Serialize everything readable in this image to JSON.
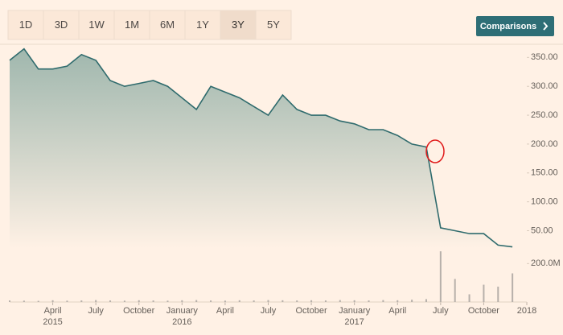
{
  "toolbar": {
    "ranges": [
      "1D",
      "3D",
      "1W",
      "1M",
      "6M",
      "1Y",
      "3Y",
      "5Y"
    ],
    "selected": "3Y",
    "button": "Comparisons"
  },
  "chart_data": [
    {
      "type": "area",
      "color": "#2f6b6d",
      "x": [
        "2015-01",
        "2015-02",
        "2015-03",
        "2015-04",
        "2015-05",
        "2015-06",
        "2015-07",
        "2015-08",
        "2015-09",
        "2015-10",
        "2015-11",
        "2015-12",
        "2016-01",
        "2016-02",
        "2016-03",
        "2016-04",
        "2016-05",
        "2016-06",
        "2016-07",
        "2016-08",
        "2016-09",
        "2016-10",
        "2016-11",
        "2016-12",
        "2017-01",
        "2017-02",
        "2017-03",
        "2017-04",
        "2017-05",
        "2017-06",
        "2017-07",
        "2017-08",
        "2017-09",
        "2017-10",
        "2017-11",
        "2017-12"
      ],
      "values": [
        345,
        365,
        330,
        330,
        335,
        355,
        345,
        310,
        300,
        305,
        310,
        300,
        280,
        260,
        300,
        290,
        280,
        265,
        250,
        285,
        260,
        250,
        250,
        240,
        235,
        225,
        225,
        215,
        200,
        195,
        55,
        50,
        45,
        45,
        25,
        22
      ],
      "xlim": [
        "2015-01",
        "2018-01"
      ],
      "ylim": [
        20,
        370
      ],
      "yticks": [
        {
          "value": 50,
          "label": "50.00"
        },
        {
          "value": 100,
          "label": "100.00"
        },
        {
          "value": 150,
          "label": "150.00"
        },
        {
          "value": 200,
          "label": "200.00"
        },
        {
          "value": 250,
          "label": "250.00"
        },
        {
          "value": 300,
          "label": "300.00"
        },
        {
          "value": 350,
          "label": "350.00"
        }
      ],
      "grid": false
    },
    {
      "type": "bar",
      "color": "#b7b0aa",
      "x": [
        "2015-01",
        "2015-02",
        "2015-03",
        "2015-04",
        "2015-05",
        "2015-06",
        "2015-07",
        "2015-08",
        "2015-09",
        "2015-10",
        "2015-11",
        "2015-12",
        "2016-01",
        "2016-02",
        "2016-03",
        "2016-04",
        "2016-05",
        "2016-06",
        "2016-07",
        "2016-08",
        "2016-09",
        "2016-10",
        "2016-11",
        "2016-12",
        "2017-01",
        "2017-02",
        "2017-03",
        "2017-04",
        "2017-05",
        "2017-06",
        "2017-07",
        "2017-08",
        "2017-09",
        "2017-10",
        "2017-11",
        "2017-12"
      ],
      "values": [
        8,
        7,
        6,
        9,
        7,
        8,
        10,
        8,
        7,
        9,
        8,
        7,
        9,
        10,
        8,
        7,
        9,
        8,
        10,
        9,
        8,
        9,
        8,
        10,
        9,
        8,
        10,
        9,
        12,
        15,
        264,
        120,
        40,
        90,
        80,
        149
      ],
      "xlim": [
        "2015-01",
        "2018-01"
      ],
      "ylim": [
        0,
        260
      ],
      "yticks": [
        {
          "value": 200,
          "label": "200.0M"
        }
      ],
      "xticks": [
        {
          "value": "2015-04",
          "label": "April"
        },
        {
          "value": "2015-07",
          "label": "July"
        },
        {
          "value": "2015-10",
          "label": "October"
        },
        {
          "value": "2016-01",
          "label": "January"
        },
        {
          "value": "2016-04",
          "label": "April"
        },
        {
          "value": "2016-07",
          "label": "July"
        },
        {
          "value": "2016-10",
          "label": "October"
        },
        {
          "value": "2017-01",
          "label": "January"
        },
        {
          "value": "2017-04",
          "label": "April"
        },
        {
          "value": "2017-07",
          "label": "July"
        },
        {
          "value": "2017-10",
          "label": "October"
        },
        {
          "value": "2018-01",
          "label": "2018"
        }
      ],
      "xtick_years": [
        {
          "value": "2015-04",
          "label": "2015"
        },
        {
          "value": "2016-01",
          "label": "2016"
        },
        {
          "value": "2017-01",
          "label": "2017"
        }
      ],
      "grid": false
    }
  ]
}
